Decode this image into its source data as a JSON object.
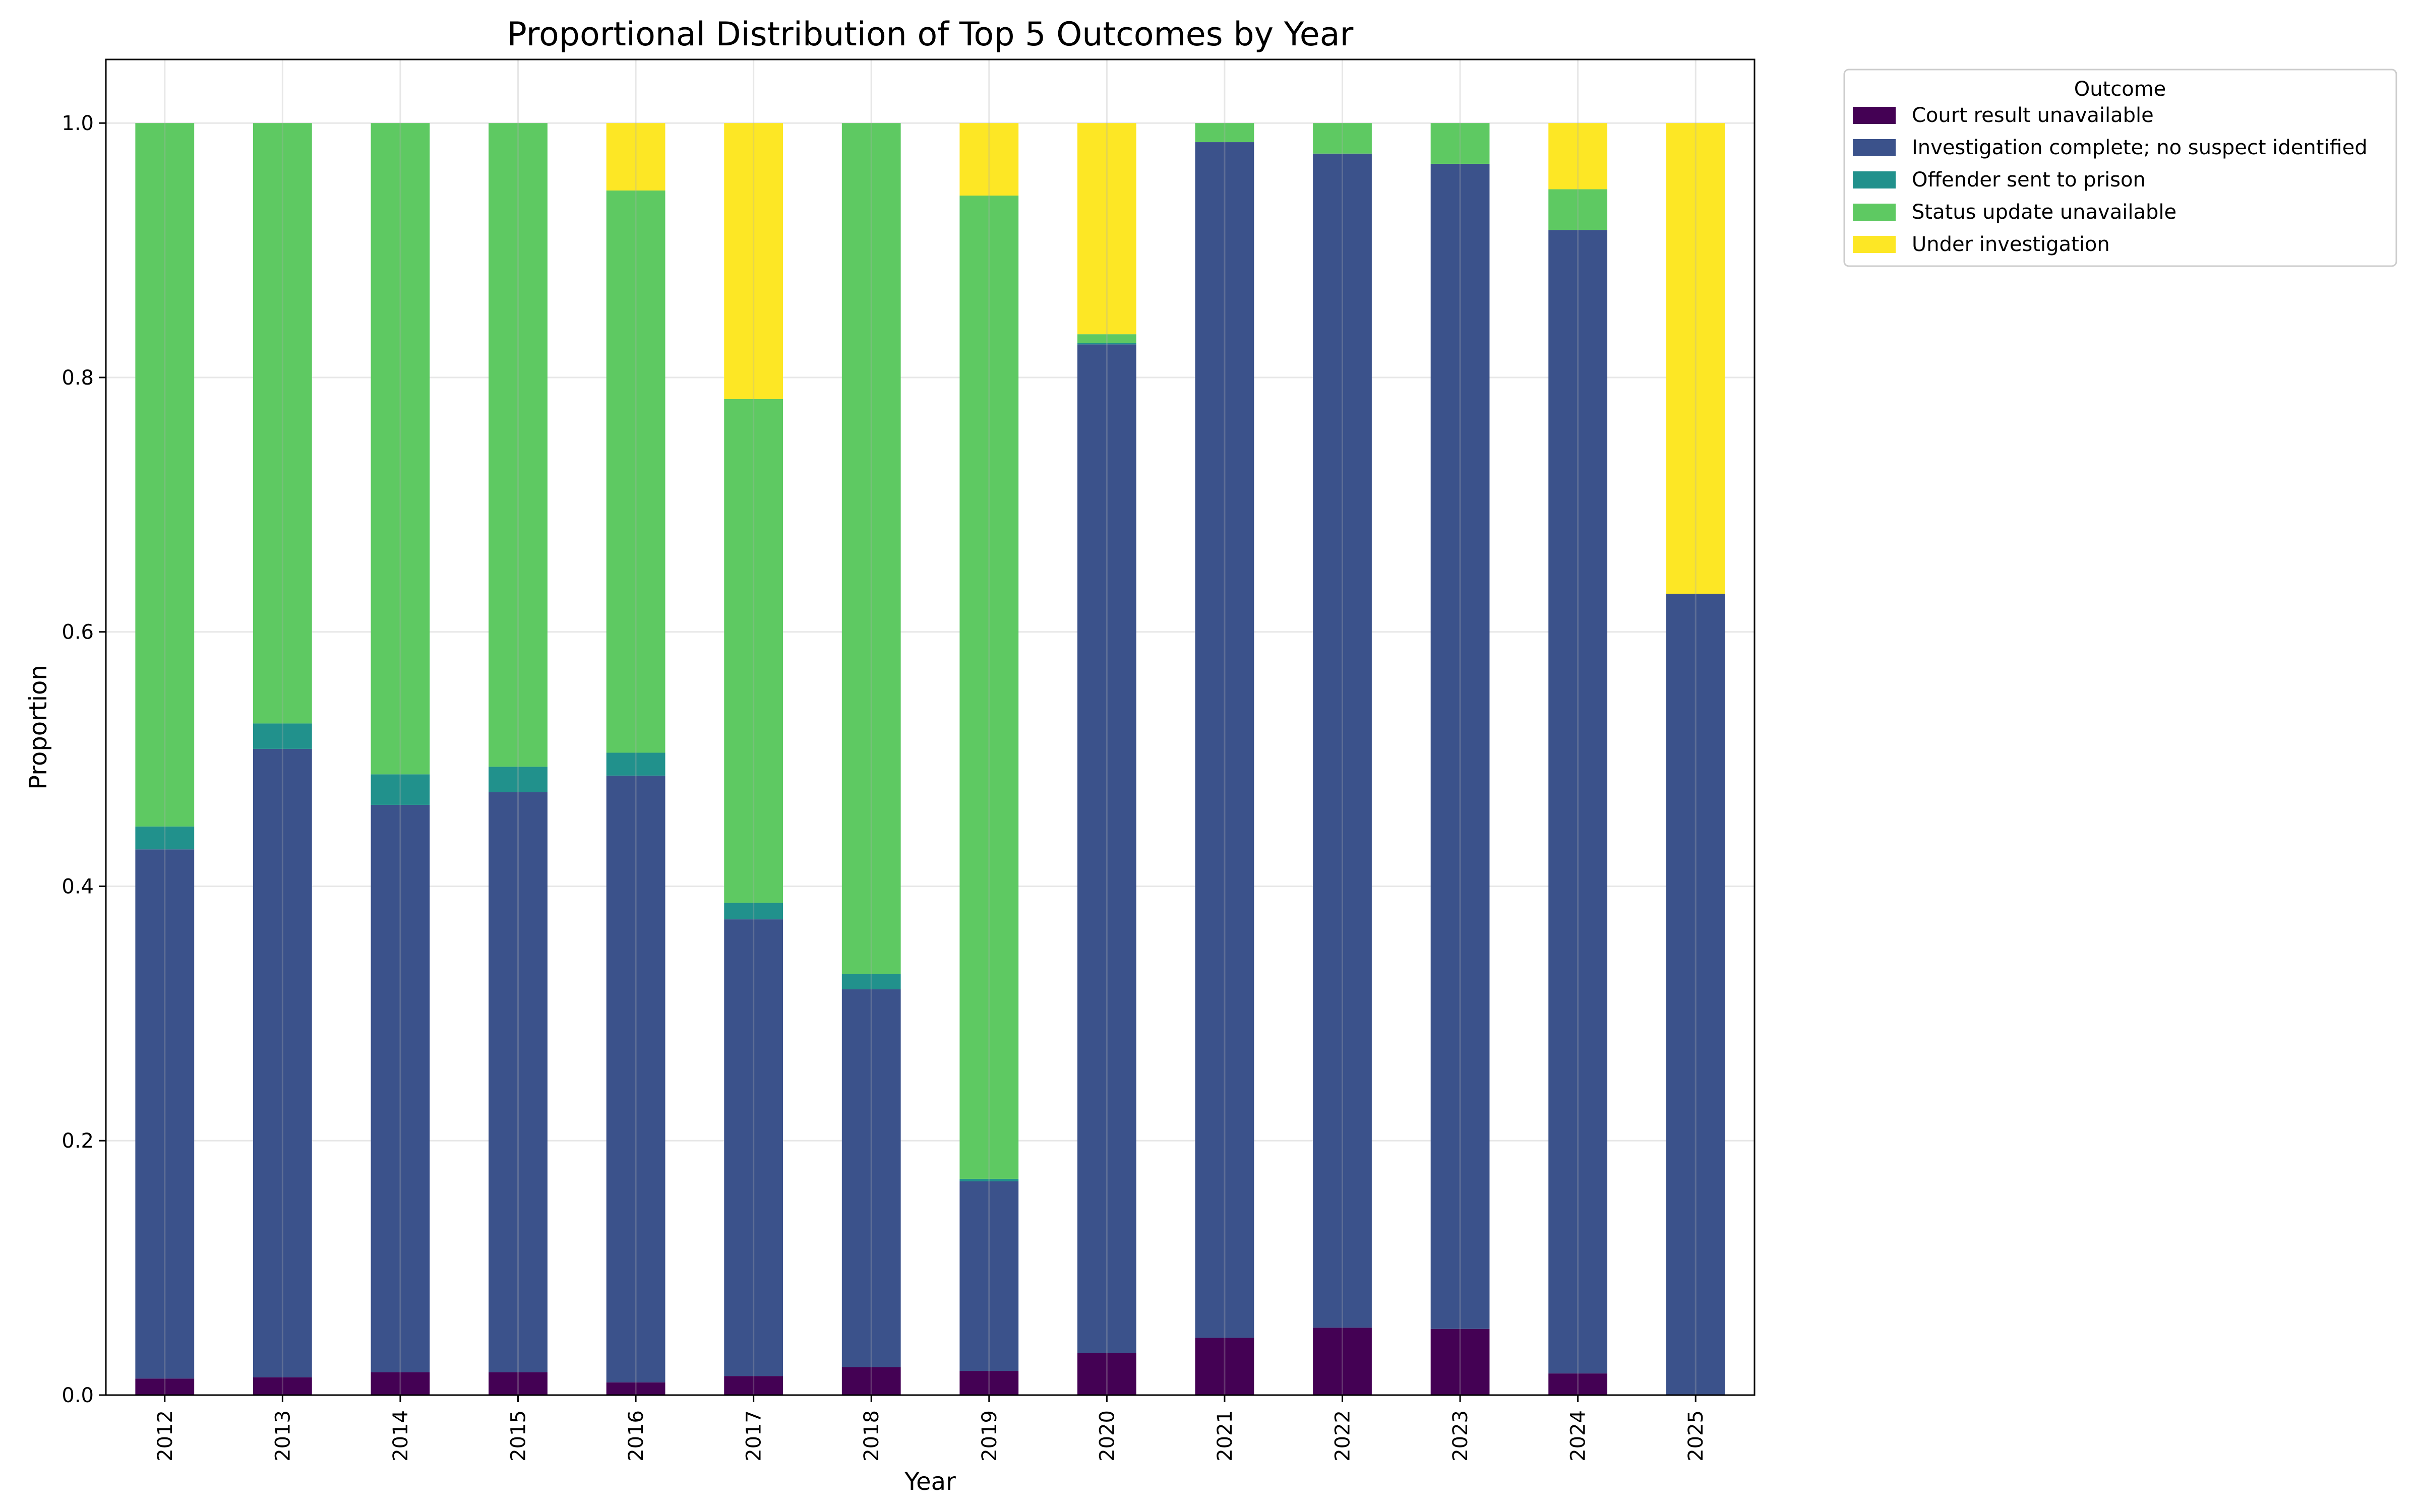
{
  "colors": {
    "Court result unavailable": "#440154",
    "Investigation complete; no suspect identified": "#3b528b",
    "Offender sent to prison": "#21918c",
    "Status update unavailable": "#5ec962",
    "Under investigation": "#fde725"
  },
  "chart_data": {
    "type": "bar",
    "stacked": true,
    "title": "Proportional Distribution of Top 5 Outcomes by Year",
    "xlabel": "Year",
    "ylabel": "Proportion",
    "ylim": [
      0,
      1.05
    ],
    "yticks": [
      "0.0",
      "0.2",
      "0.4",
      "0.6",
      "0.8",
      "1.0"
    ],
    "grid": true,
    "legend": {
      "title": "Outcome",
      "placement": "outside-upper-right"
    },
    "categories": [
      "2012",
      "2013",
      "2014",
      "2015",
      "2016",
      "2017",
      "2018",
      "2019",
      "2020",
      "2021",
      "2022",
      "2023",
      "2024",
      "2025"
    ],
    "series": [
      {
        "name": "Court result unavailable",
        "values": [
          0.013,
          0.014,
          0.018,
          0.018,
          0.01,
          0.015,
          0.022,
          0.019,
          0.033,
          0.045,
          0.053,
          0.052,
          0.017,
          0.0
        ]
      },
      {
        "name": "Investigation complete; no suspect identified",
        "values": [
          0.416,
          0.494,
          0.446,
          0.456,
          0.477,
          0.359,
          0.297,
          0.149,
          0.793,
          0.94,
          0.923,
          0.916,
          0.899,
          0.63
        ]
      },
      {
        "name": "Offender sent to prison",
        "values": [
          0.018,
          0.02,
          0.024,
          0.02,
          0.018,
          0.013,
          0.012,
          0.002,
          0.001,
          0.0,
          0.0,
          0.0,
          0.0,
          0.0
        ]
      },
      {
        "name": "Status update unavailable",
        "values": [
          0.553,
          0.472,
          0.512,
          0.506,
          0.442,
          0.396,
          0.669,
          0.773,
          0.007,
          0.015,
          0.024,
          0.032,
          0.032,
          0.0
        ]
      },
      {
        "name": "Under investigation",
        "values": [
          0.0,
          0.0,
          0.0,
          0.0,
          0.053,
          0.217,
          0.0,
          0.057,
          0.166,
          0.0,
          0.0,
          0.0,
          0.052,
          0.37
        ]
      }
    ]
  }
}
